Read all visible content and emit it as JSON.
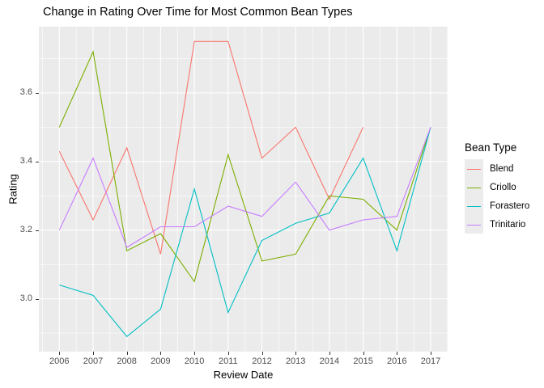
{
  "title": "Change in Rating Over Time for Most Common Bean Types",
  "axes": {
    "x_label": "Review Date",
    "y_label": "Rating",
    "x_tick_labels": [
      "2006",
      "2007",
      "2008",
      "2009",
      "2010",
      "2011",
      "2012",
      "2013",
      "2014",
      "2015",
      "2016",
      "2017"
    ],
    "y_tick_labels": [
      "3.0",
      "3.2",
      "3.4",
      "3.6"
    ]
  },
  "legend": {
    "title": "Bean Type",
    "items": [
      {
        "label": "Blend",
        "color": "#F8766D"
      },
      {
        "label": "Criollo",
        "color": "#7CAE00"
      },
      {
        "label": "Forastero",
        "color": "#00BFC4"
      },
      {
        "label": "Trinitario",
        "color": "#C77CFF"
      }
    ]
  },
  "colors": {
    "panel_background": "#EBEBEB",
    "gridline": "#FFFFFF",
    "tick_text": "#4D4D4D",
    "tick_mark": "#333333",
    "legend_key_background": "#ECECEC"
  },
  "chart_data": {
    "type": "line",
    "title": "Change in Rating Over Time for Most Common Bean Types",
    "xlabel": "Review Date",
    "ylabel": "Rating",
    "x": [
      2006,
      2007,
      2008,
      2009,
      2010,
      2011,
      2012,
      2013,
      2014,
      2015,
      2016,
      2017
    ],
    "y_ticks": [
      3.0,
      3.2,
      3.4,
      3.6
    ],
    "y_minor_ticks": [
      2.9,
      3.1,
      3.3,
      3.5,
      3.7
    ],
    "ylim": [
      2.846,
      3.793
    ],
    "grid": true,
    "legend_position": "right",
    "legend_title": "Bean Type",
    "series": [
      {
        "name": "Blend",
        "color": "#F8766D",
        "values": [
          3.43,
          3.23,
          3.44,
          3.13,
          3.75,
          3.75,
          3.41,
          3.5,
          3.29,
          3.5,
          null,
          null
        ]
      },
      {
        "name": "Criollo",
        "color": "#7CAE00",
        "values": [
          3.5,
          3.72,
          3.14,
          3.19,
          3.05,
          3.42,
          3.11,
          3.13,
          3.3,
          3.29,
          3.2,
          3.5
        ]
      },
      {
        "name": "Forastero",
        "color": "#00BFC4",
        "values": [
          3.04,
          3.01,
          2.89,
          2.97,
          3.32,
          2.96,
          3.17,
          3.22,
          3.25,
          3.41,
          3.14,
          3.5
        ]
      },
      {
        "name": "Trinitario",
        "color": "#C77CFF",
        "values": [
          3.2,
          3.41,
          3.15,
          3.21,
          3.21,
          3.27,
          3.24,
          3.34,
          3.2,
          3.23,
          3.24,
          3.5
        ]
      }
    ]
  }
}
